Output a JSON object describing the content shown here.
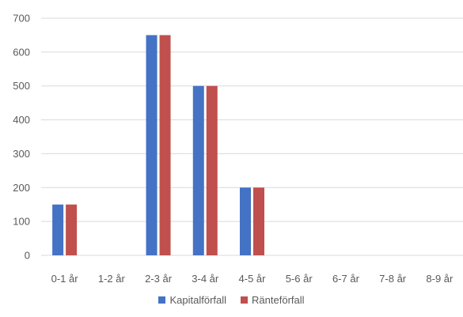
{
  "chart_data": {
    "type": "bar",
    "title": "",
    "xlabel": "",
    "ylabel": "",
    "categories": [
      "0-1 år",
      "1-2 år",
      "2-3 år",
      "3-4 år",
      "4-5 år",
      "5-6 år",
      "6-7 år",
      "7-8 år",
      "8-9 år"
    ],
    "series": [
      {
        "name": "Kapitalförfall",
        "color": "#4472C4",
        "values": [
          150,
          0,
          650,
          500,
          200,
          0,
          0,
          0,
          0
        ]
      },
      {
        "name": "Ränteförfall",
        "color": "#C0504D",
        "values": [
          150,
          0,
          650,
          500,
          200,
          0,
          0,
          0,
          0
        ]
      }
    ],
    "ylim": [
      0,
      700
    ],
    "yticks": [
      0,
      100,
      200,
      300,
      400,
      500,
      600,
      700
    ],
    "grid": true,
    "legend_position": "bottom"
  }
}
